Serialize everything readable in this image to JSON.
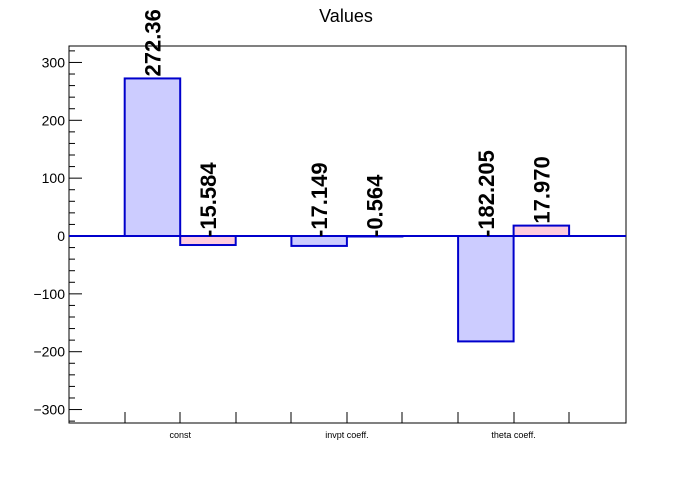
{
  "chart_data": {
    "type": "bar",
    "title": "Values",
    "xlabel": "",
    "ylabel": "",
    "ylim": [
      -325,
      325
    ],
    "yticks": [
      -300,
      -200,
      -100,
      0,
      100,
      200,
      300
    ],
    "ytick_labels": [
      "−300",
      "−200",
      "−100",
      "0",
      "100",
      "200",
      "300"
    ],
    "categories": [
      "const",
      "invpt coeff.",
      "theta coeff."
    ],
    "grid": false,
    "legend": "none",
    "series": [
      {
        "values": [
          272.36,
          -17.149,
          -182.205
        ],
        "labels": [
          "272.36",
          "-17.149",
          "-182.205"
        ],
        "fill": "#ccccff",
        "stroke": "#0000cc"
      },
      {
        "values": [
          -15.584,
          -0.564,
          17.97
        ],
        "labels": [
          "-15.584",
          "-0.564",
          "17.970"
        ],
        "fill": "#ffccdd",
        "stroke": "#0000cc"
      }
    ],
    "baseline_color": "#0000cc"
  }
}
